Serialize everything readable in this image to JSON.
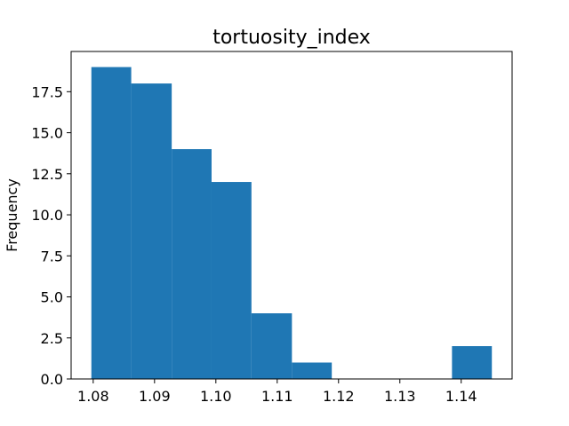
{
  "chart_data": {
    "type": "bar",
    "title": "tortuosity_index",
    "xlabel": "",
    "ylabel": "Frequency",
    "bin_edges": [
      1.0797,
      1.0862,
      1.0928,
      1.0993,
      1.1058,
      1.1124,
      1.1189,
      1.1254,
      1.132,
      1.1385,
      1.145
    ],
    "values": [
      19,
      18,
      14,
      12,
      4,
      1,
      0,
      0,
      0,
      2
    ],
    "xlim": [
      1.0764,
      1.1483
    ],
    "ylim": [
      0,
      19.95
    ],
    "x_ticks": [
      1.08,
      1.09,
      1.1,
      1.11,
      1.12,
      1.13,
      1.14
    ],
    "x_tick_labels": [
      "1.08",
      "1.09",
      "1.10",
      "1.11",
      "1.12",
      "1.13",
      "1.14"
    ],
    "y_ticks": [
      0,
      2.5,
      5,
      7.5,
      10,
      12.5,
      15,
      17.5
    ],
    "y_tick_labels": [
      "0.0",
      "2.5",
      "5.0",
      "7.5",
      "10.0",
      "12.5",
      "15.0",
      "17.5"
    ],
    "bar_color": "#1f77b4",
    "grid": false,
    "legend": "none"
  }
}
